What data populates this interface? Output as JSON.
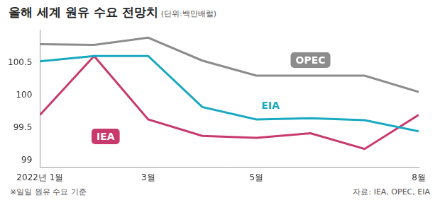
{
  "chart_data": {
    "type": "line",
    "title": "올해 세계 원유 수요 전망치",
    "subtitle": "(단위:백만배럴)",
    "annotations": [
      "※일일 원유 수요 기준",
      "자료: IEA, OPEC, EIA"
    ],
    "categories": [
      "2022년 1월",
      null,
      "3월",
      null,
      "5월",
      null,
      null,
      "8월"
    ],
    "series": [
      {
        "name": "OPEC",
        "color": "#8c8c8c",
        "values": [
          100.78,
          100.77,
          100.88,
          100.53,
          100.3,
          100.3,
          100.3,
          100.05
        ]
      },
      {
        "name": "EIA",
        "color": "#19a9c0",
        "values": [
          100.52,
          100.6,
          100.6,
          99.82,
          99.63,
          99.65,
          99.62,
          99.45
        ]
      },
      {
        "name": "IEA",
        "color": "#c8396e",
        "values": [
          99.7,
          100.6,
          99.63,
          99.38,
          99.35,
          99.42,
          99.18,
          99.7
        ]
      }
    ],
    "ylim": [
      98.9,
      101
    ],
    "yticks": [
      99,
      99.5,
      100,
      100.5
    ],
    "grid": false
  }
}
